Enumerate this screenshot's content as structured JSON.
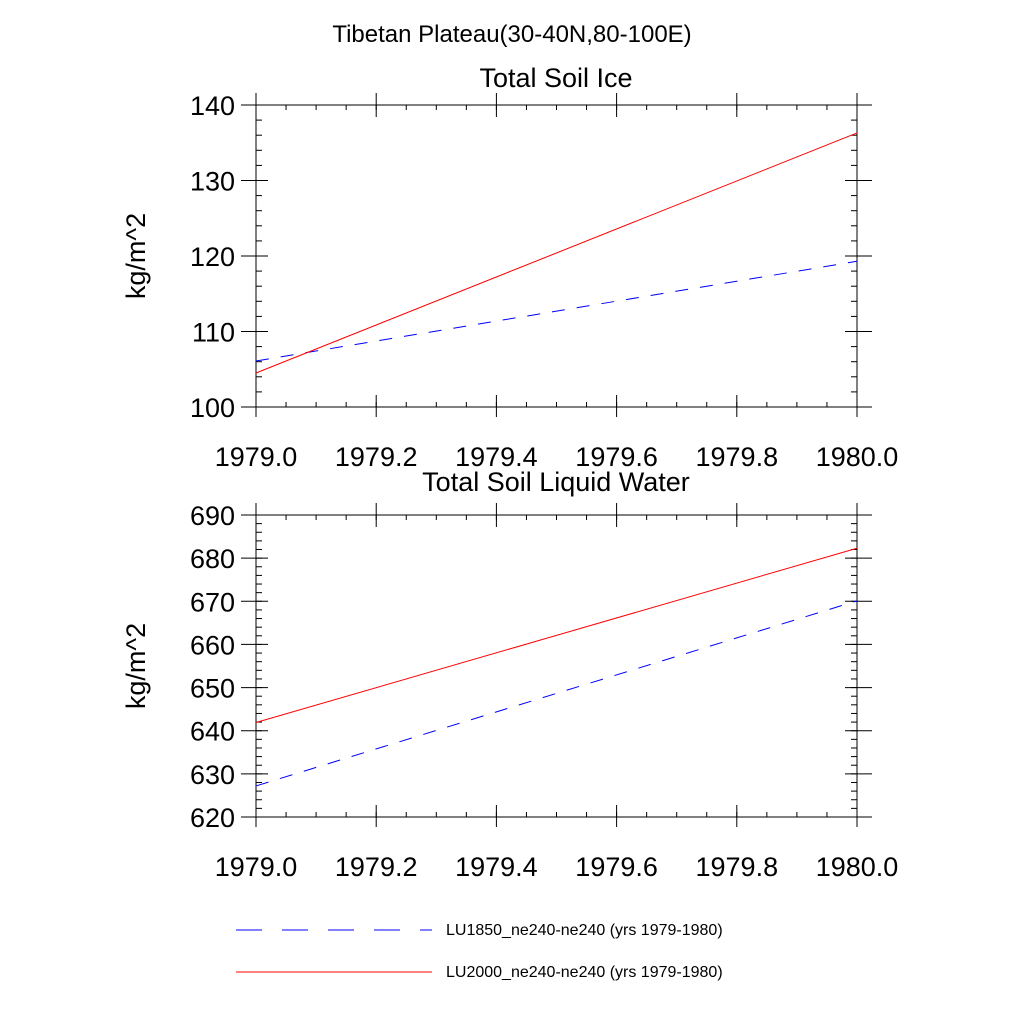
{
  "figure": {
    "title": "Tibetan Plateau(30-40N,80-100E)"
  },
  "colors": {
    "series_1850": "#0000ff",
    "series_2000": "#ff0000",
    "axis": "#000000",
    "background": "#ffffff"
  },
  "legend": {
    "placement": "bottom",
    "entries": [
      {
        "label": "LU1850_ne240-ne240 (yrs 1979-1980)",
        "color": "#0000ff",
        "style": "dashed"
      },
      {
        "label": "LU2000_ne240-ne240 (yrs 1979-1980)",
        "color": "#ff0000",
        "style": "solid"
      }
    ]
  },
  "chart_data": [
    {
      "type": "line",
      "title": "Total Soil Ice",
      "xlabel": "",
      "ylabel": "kg/m^2",
      "xlim": [
        1979.0,
        1980.0
      ],
      "ylim": [
        100,
        140
      ],
      "xticks": [
        1979.0,
        1979.2,
        1979.4,
        1979.6,
        1979.8,
        1980.0
      ],
      "xtick_labels": [
        "1979.0",
        "1979.2",
        "1979.4",
        "1979.6",
        "1979.8",
        "1980.0"
      ],
      "yticks": [
        100,
        110,
        120,
        130,
        140
      ],
      "ytick_labels": [
        "100",
        "110",
        "120",
        "130",
        "140"
      ],
      "grid": false,
      "series": [
        {
          "name": "LU1850_ne240-ne240 (yrs 1979-1980)",
          "x": [
            1979.0,
            1980.0
          ],
          "y": [
            106.1,
            119.3
          ],
          "color": "#0000ff",
          "style": "dashed"
        },
        {
          "name": "LU2000_ne240-ne240 (yrs 1979-1980)",
          "x": [
            1979.0,
            1980.0
          ],
          "y": [
            104.5,
            136.3
          ],
          "color": "#ff0000",
          "style": "solid"
        }
      ]
    },
    {
      "type": "line",
      "title": "Total Soil Liquid Water",
      "xlabel": "",
      "ylabel": "kg/m^2",
      "xlim": [
        1979.0,
        1980.0
      ],
      "ylim": [
        620,
        690
      ],
      "xticks": [
        1979.0,
        1979.2,
        1979.4,
        1979.6,
        1979.8,
        1980.0
      ],
      "xtick_labels": [
        "1979.0",
        "1979.2",
        "1979.4",
        "1979.6",
        "1979.8",
        "1980.0"
      ],
      "yticks": [
        620,
        630,
        640,
        650,
        660,
        670,
        680,
        690
      ],
      "ytick_labels": [
        "620",
        "630",
        "640",
        "650",
        "660",
        "670",
        "680",
        "690"
      ],
      "grid": false,
      "series": [
        {
          "name": "LU1850_ne240-ne240 (yrs 1979-1980)",
          "x": [
            1979.0,
            1980.0
          ],
          "y": [
            627.2,
            670.1
          ],
          "color": "#0000ff",
          "style": "dashed"
        },
        {
          "name": "LU2000_ne240-ne240 (yrs 1979-1980)",
          "x": [
            1979.0,
            1980.0
          ],
          "y": [
            641.9,
            682.3
          ],
          "color": "#ff0000",
          "style": "solid"
        }
      ]
    }
  ]
}
